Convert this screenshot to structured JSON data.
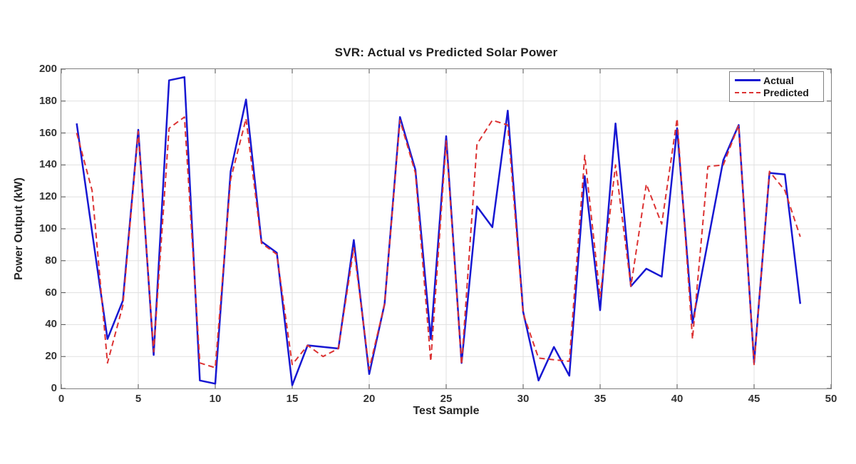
{
  "figure": {
    "background": "#ffffff"
  },
  "chart_data": {
    "type": "line",
    "title": "SVR: Actual vs Predicted Solar Power",
    "xlabel": "Test Sample",
    "ylabel": "Power Output (kW)",
    "xlim": [
      0,
      50
    ],
    "ylim": [
      0,
      200
    ],
    "xticks": [
      0,
      5,
      10,
      15,
      20,
      25,
      30,
      35,
      40,
      45,
      50
    ],
    "yticks": [
      0,
      20,
      40,
      60,
      80,
      100,
      120,
      140,
      160,
      180,
      200
    ],
    "grid": true,
    "legend_position": "top-right",
    "colors": {
      "grid": "#e0e0e0",
      "axis_box": "#7f7f7f",
      "tick_marks": "#4d4d4d",
      "text": "#262626"
    },
    "x": [
      1,
      2,
      3,
      4,
      5,
      6,
      7,
      8,
      9,
      10,
      11,
      12,
      13,
      14,
      15,
      16,
      17,
      18,
      19,
      20,
      21,
      22,
      23,
      24,
      25,
      26,
      27,
      28,
      29,
      30,
      31,
      32,
      33,
      34,
      35,
      36,
      37,
      38,
      39,
      40,
      41,
      42,
      43,
      44,
      45,
      46,
      47,
      48
    ],
    "series": [
      {
        "name": "Actual",
        "color": "#1717d2",
        "style": "solid",
        "values": [
          166,
          98,
          31,
          55,
          162,
          21,
          193,
          195,
          5,
          3,
          136,
          181,
          92,
          85,
          2,
          27,
          26,
          25,
          93,
          9,
          53,
          170,
          137,
          31,
          158,
          16,
          114,
          101,
          174,
          48,
          5,
          26,
          8,
          133,
          49,
          166,
          64,
          75,
          70,
          163,
          41,
          92,
          143,
          165,
          16,
          135,
          134,
          53
        ]
      },
      {
        "name": "Predicted",
        "color": "#dc3232",
        "style": "dashed",
        "values": [
          160,
          124,
          16,
          52,
          161,
          23,
          163,
          170,
          16,
          13,
          131,
          169,
          91,
          84,
          15,
          27,
          20,
          25,
          88,
          12,
          53,
          168,
          135,
          17,
          155,
          15,
          153,
          168,
          165,
          47,
          19,
          18,
          17,
          146,
          57,
          140,
          64,
          128,
          103,
          169,
          31,
          139,
          140,
          165,
          15,
          136,
          124,
          95
        ]
      }
    ]
  }
}
